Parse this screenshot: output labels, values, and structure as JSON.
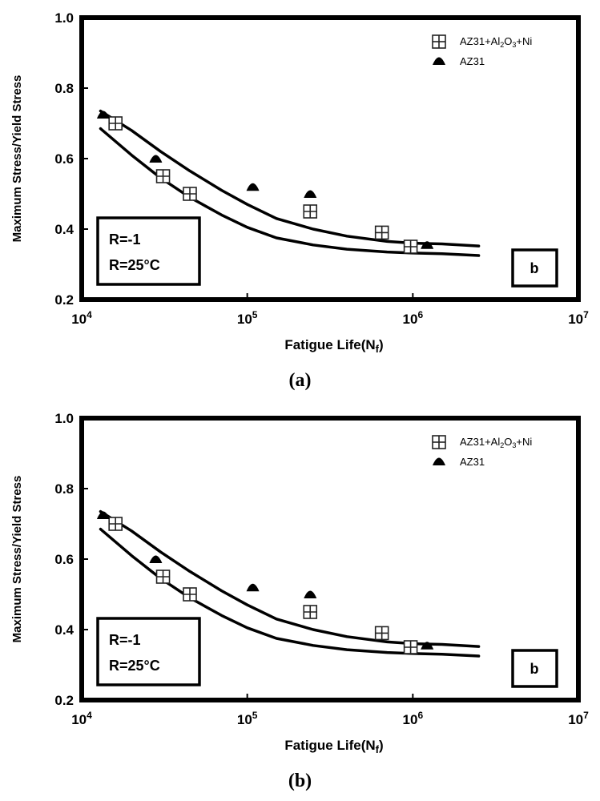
{
  "captions": [
    "(a)",
    "(b)"
  ],
  "chart_data": [
    {
      "type": "scatter",
      "title": "",
      "xlabel": "Fatigue Life(N",
      "xlabel_sub": "f",
      "xlabel_close": ")",
      "ylabel": "Maximum Stress/Yield Stress",
      "xscale": "log",
      "xlim": [
        10000,
        10000000
      ],
      "ylim": [
        0.2,
        1.0
      ],
      "x_ticks": [
        {
          "value": 10000,
          "base": "10",
          "exp": "4"
        },
        {
          "value": 100000,
          "base": "10",
          "exp": "5"
        },
        {
          "value": 1000000,
          "base": "10",
          "exp": "6"
        },
        {
          "value": 10000000,
          "base": "10",
          "exp": "7"
        }
      ],
      "y_ticks": [
        "0.2",
        "0.4",
        "0.6",
        "0.8",
        "1.0"
      ],
      "y_tick_values": [
        0.2,
        0.4,
        0.6,
        0.8,
        1.0
      ],
      "series": [
        {
          "name": "AZ31+Al2O3+Ni",
          "legend_parts": [
            "AZ31+Al",
            "2",
            "O",
            "3",
            "+Ni"
          ],
          "marker": "boxed-plus",
          "x": [
            16000,
            31000,
            45000,
            240000,
            650000,
            970000
          ],
          "y": [
            0.7,
            0.55,
            0.5,
            0.45,
            0.39,
            0.35
          ]
        },
        {
          "name": "AZ31",
          "legend_parts": [
            "AZ31"
          ],
          "marker": "triangle",
          "x": [
            13500,
            28000,
            108000,
            240000,
            1220000
          ],
          "y": [
            0.725,
            0.6,
            0.52,
            0.5,
            0.355
          ]
        }
      ],
      "fit_curves": [
        {
          "name": "upper curve",
          "x": [
            13000,
            20000,
            30000,
            45000,
            70000,
            100000,
            150000,
            250000,
            400000,
            700000,
            1000000,
            1500000,
            2500000
          ],
          "y": [
            0.735,
            0.68,
            0.62,
            0.565,
            0.51,
            0.47,
            0.43,
            0.4,
            0.38,
            0.365,
            0.36,
            0.358,
            0.352
          ]
        },
        {
          "name": "lower curve",
          "x": [
            13000,
            20000,
            30000,
            45000,
            70000,
            100000,
            150000,
            250000,
            400000,
            700000,
            1000000,
            1500000,
            2500000
          ],
          "y": [
            0.685,
            0.61,
            0.545,
            0.49,
            0.44,
            0.405,
            0.375,
            0.355,
            0.343,
            0.335,
            0.332,
            0.33,
            0.325
          ]
        }
      ],
      "annotations": {
        "r_ratio": "R=-1",
        "temperature": "R=25°C",
        "panel_label": "b"
      }
    },
    {
      "type": "scatter",
      "title": "",
      "xlabel": "Fatigue Life(N",
      "xlabel_sub": "f",
      "xlabel_close": ")",
      "ylabel": "Maximum Stress/Yield Stress",
      "xscale": "log",
      "xlim": [
        10000,
        10000000
      ],
      "ylim": [
        0.2,
        1.0
      ],
      "x_ticks": [
        {
          "value": 10000,
          "base": "10",
          "exp": "4"
        },
        {
          "value": 100000,
          "base": "10",
          "exp": "5"
        },
        {
          "value": 1000000,
          "base": "10",
          "exp": "6"
        },
        {
          "value": 10000000,
          "base": "10",
          "exp": "7"
        }
      ],
      "y_ticks": [
        "0.2",
        "0.4",
        "0.6",
        "0.8",
        "1.0"
      ],
      "y_tick_values": [
        0.2,
        0.4,
        0.6,
        0.8,
        1.0
      ],
      "series": [
        {
          "name": "AZ31+Al2O3+Ni",
          "legend_parts": [
            "AZ31+Al",
            "2",
            "O",
            "3",
            "+Ni"
          ],
          "marker": "boxed-plus",
          "x": [
            16000,
            31000,
            45000,
            240000,
            650000,
            970000
          ],
          "y": [
            0.7,
            0.55,
            0.5,
            0.45,
            0.39,
            0.35
          ]
        },
        {
          "name": "AZ31",
          "legend_parts": [
            "AZ31"
          ],
          "marker": "triangle",
          "x": [
            13500,
            28000,
            108000,
            240000,
            1220000
          ],
          "y": [
            0.725,
            0.6,
            0.52,
            0.5,
            0.355
          ]
        }
      ],
      "fit_curves": [
        {
          "name": "upper curve",
          "x": [
            13000,
            20000,
            30000,
            45000,
            70000,
            100000,
            150000,
            250000,
            400000,
            700000,
            1000000,
            1500000,
            2500000
          ],
          "y": [
            0.735,
            0.68,
            0.62,
            0.565,
            0.51,
            0.47,
            0.43,
            0.4,
            0.38,
            0.365,
            0.36,
            0.358,
            0.352
          ]
        },
        {
          "name": "lower curve",
          "x": [
            13000,
            20000,
            30000,
            45000,
            70000,
            100000,
            150000,
            250000,
            400000,
            700000,
            1000000,
            1500000,
            2500000
          ],
          "y": [
            0.685,
            0.61,
            0.545,
            0.49,
            0.44,
            0.405,
            0.375,
            0.355,
            0.343,
            0.335,
            0.332,
            0.33,
            0.325
          ]
        }
      ],
      "annotations": {
        "r_ratio": "R=-1",
        "temperature": "R=25°C",
        "panel_label": "b"
      }
    }
  ]
}
